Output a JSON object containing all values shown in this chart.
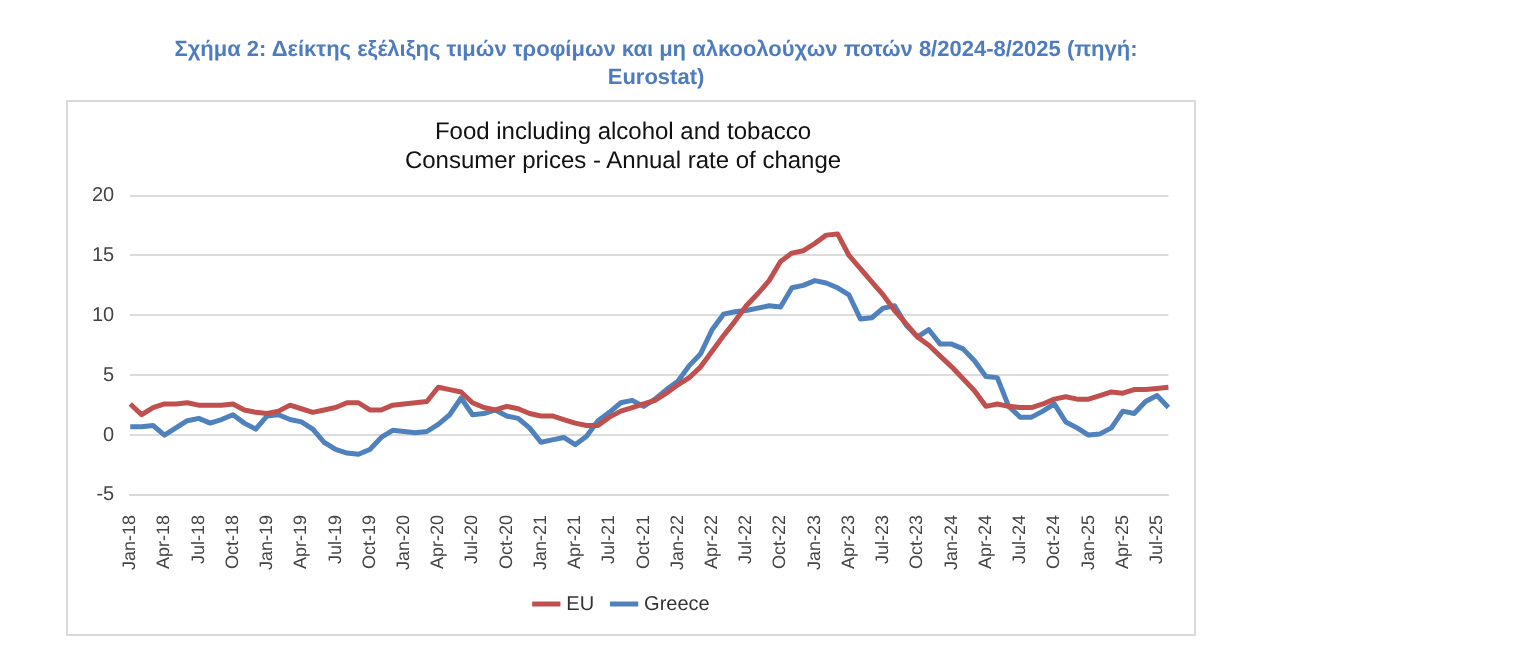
{
  "chart_data": {
    "type": "line",
    "title": "Σχήμα 2: Δείκτης εξέλιξης τιμών τροφίμων και μη αλκοολούχων ποτών 8/2024-8/2025 (πηγή: Eurostat)",
    "subtitle": "Food including alcohol and tobacco\nConsumer prices - Annual rate of change",
    "categories": [
      "Jan-18",
      null,
      null,
      "Apr-18",
      null,
      null,
      "Jul-18",
      null,
      null,
      "Oct-18",
      null,
      null,
      "Jan-19",
      null,
      null,
      "Apr-19",
      null,
      null,
      "Jul-19",
      null,
      null,
      "Oct-19",
      null,
      null,
      "Jan-20",
      null,
      null,
      "Apr-20",
      null,
      null,
      "Jul-20",
      null,
      null,
      "Oct-20",
      null,
      null,
      "Jan-21",
      null,
      null,
      "Apr-21",
      null,
      null,
      "Jul-21",
      null,
      null,
      "Oct-21",
      null,
      null,
      "Jan-22",
      null,
      null,
      "Apr-22",
      null,
      null,
      "Jul-22",
      null,
      null,
      "Oct-22",
      null,
      null,
      "Jan-23",
      null,
      null,
      "Apr-23",
      null,
      null,
      "Jul-23",
      null,
      null,
      "Oct-23",
      null,
      null,
      "Jan-24",
      null,
      null,
      "Apr-24",
      null,
      null,
      "Jul-24",
      null,
      null,
      "Oct-24",
      null,
      null,
      "Jan-25",
      null,
      null,
      "Apr-25",
      null,
      null,
      "Jul-25",
      null
    ],
    "series": [
      {
        "name": "EU",
        "color": "#c0504d",
        "values": [
          2.6,
          1.7,
          2.3,
          2.6,
          2.6,
          2.7,
          2.5,
          2.5,
          2.5,
          2.6,
          2.1,
          1.9,
          1.8,
          2.0,
          2.5,
          2.2,
          1.9,
          2.1,
          2.3,
          2.7,
          2.7,
          2.1,
          2.1,
          2.5,
          2.6,
          2.7,
          2.8,
          4.0,
          3.8,
          3.6,
          2.7,
          2.3,
          2.1,
          2.4,
          2.2,
          1.8,
          1.6,
          1.6,
          1.3,
          1.0,
          0.8,
          0.8,
          1.5,
          2.0,
          2.3,
          2.6,
          2.9,
          3.5,
          4.2,
          4.8,
          5.7,
          7.0,
          8.3,
          9.5,
          10.8,
          11.8,
          12.9,
          14.5,
          15.2,
          15.4,
          16.0,
          16.7,
          16.8,
          15.0,
          13.9,
          12.8,
          11.7,
          10.4,
          9.3,
          8.2,
          7.5,
          6.6,
          5.7,
          4.7,
          3.7,
          2.4,
          2.6,
          2.4,
          2.3,
          2.3,
          2.6,
          3.0,
          3.2,
          3.0,
          3.0,
          3.3,
          3.6,
          3.5,
          3.8,
          3.8,
          3.9,
          4.0
        ]
      },
      {
        "name": "Greece",
        "color": "#4f81bd",
        "values": [
          0.7,
          0.7,
          0.8,
          0.0,
          0.6,
          1.2,
          1.4,
          1.0,
          1.3,
          1.7,
          1.0,
          0.5,
          1.6,
          1.7,
          1.3,
          1.1,
          0.5,
          -0.6,
          -1.2,
          -1.5,
          -1.6,
          -1.2,
          -0.2,
          0.4,
          0.3,
          0.2,
          0.3,
          0.9,
          1.7,
          3.1,
          1.7,
          1.8,
          2.1,
          1.6,
          1.4,
          0.6,
          -0.6,
          -0.4,
          -0.2,
          -0.8,
          -0.1,
          1.2,
          1.9,
          2.7,
          2.9,
          2.4,
          3.0,
          3.8,
          4.5,
          5.8,
          6.8,
          8.8,
          10.1,
          10.3,
          10.4,
          10.6,
          10.8,
          10.7,
          12.3,
          12.5,
          12.9,
          12.7,
          12.3,
          11.7,
          9.7,
          9.8,
          10.6,
          10.8,
          9.2,
          8.2,
          8.8,
          7.6,
          7.6,
          7.2,
          6.2,
          4.9,
          4.8,
          2.4,
          1.5,
          1.5,
          2.0,
          2.6,
          1.1,
          0.6,
          0.0,
          0.1,
          0.6,
          2.0,
          1.8,
          2.8,
          3.3,
          2.3
        ]
      }
    ],
    "ylim": [
      -5,
      20
    ],
    "yticks": [
      -5,
      0,
      5,
      10,
      15,
      20
    ],
    "grid": "y",
    "legend": "bottom",
    "marker": "none",
    "line_style": "solid"
  }
}
